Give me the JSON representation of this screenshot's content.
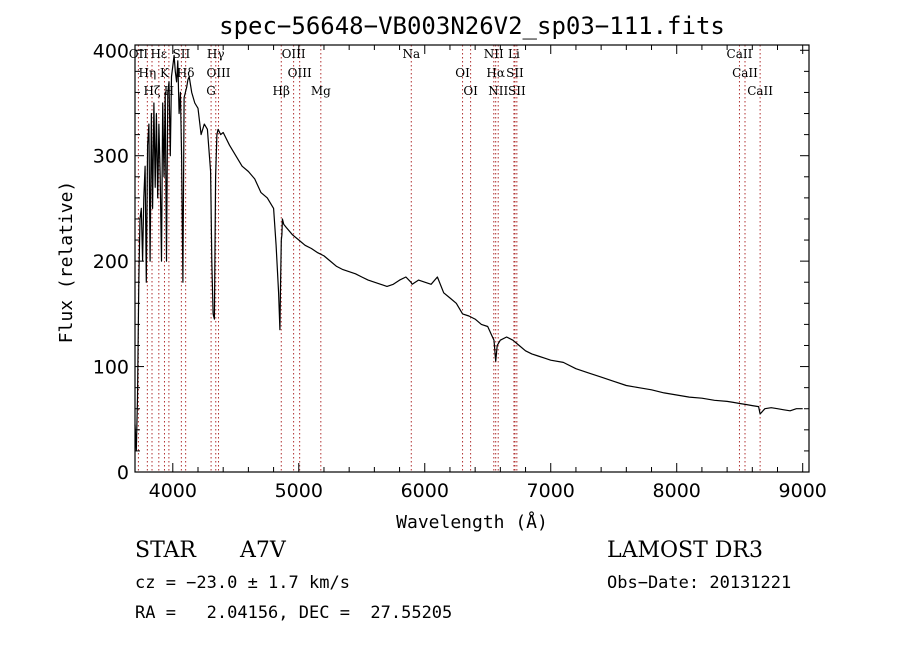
{
  "chart_data": {
    "type": "line",
    "title": "spec−56648−VB003N26V2_sp03−111.fits",
    "xlabel": "Wavelength (Å)",
    "ylabel": "Flux (relative)",
    "xlim": [
      3700,
      9050
    ],
    "ylim": [
      0,
      405
    ],
    "xticks": [
      4000,
      5000,
      6000,
      7000,
      8000,
      9000
    ],
    "yticks": [
      0,
      100,
      200,
      300,
      400
    ],
    "grid": false,
    "series": [
      {
        "name": "spectrum",
        "x": [
          3700,
          3710,
          3720,
          3730,
          3740,
          3750,
          3760,
          3770,
          3780,
          3790,
          3800,
          3810,
          3820,
          3830,
          3840,
          3850,
          3860,
          3870,
          3880,
          3890,
          3900,
          3910,
          3920,
          3930,
          3940,
          3950,
          3960,
          3970,
          3980,
          3990,
          4000,
          4010,
          4020,
          4030,
          4040,
          4050,
          4060,
          4070,
          4080,
          4090,
          4100,
          4110,
          4120,
          4130,
          4150,
          4175,
          4200,
          4225,
          4250,
          4275,
          4300,
          4310,
          4320,
          4330,
          4340,
          4350,
          4360,
          4380,
          4400,
          4450,
          4500,
          4550,
          4600,
          4650,
          4700,
          4750,
          4800,
          4820,
          4840,
          4850,
          4855,
          4861,
          4866,
          4870,
          4880,
          4900,
          4950,
          5000,
          5050,
          5100,
          5150,
          5200,
          5250,
          5300,
          5350,
          5400,
          5450,
          5500,
          5550,
          5600,
          5650,
          5700,
          5750,
          5800,
          5850,
          5890,
          5900,
          5950,
          6000,
          6050,
          6100,
          6150,
          6200,
          6250,
          6300,
          6350,
          6400,
          6450,
          6500,
          6530,
          6550,
          6563,
          6575,
          6600,
          6650,
          6700,
          6750,
          6800,
          6850,
          6900,
          6950,
          7000,
          7100,
          7200,
          7300,
          7400,
          7500,
          7600,
          7700,
          7800,
          7900,
          8000,
          8100,
          8200,
          8300,
          8400,
          8450,
          8500,
          8550,
          8600,
          8650,
          8662,
          8700,
          8750,
          8800,
          8850,
          8900,
          8950,
          9000
        ],
        "values": [
          45,
          20,
          70,
          180,
          240,
          250,
          200,
          260,
          290,
          180,
          310,
          330,
          200,
          340,
          250,
          350,
          270,
          340,
          260,
          330,
          280,
          200,
          350,
          280,
          360,
          200,
          360,
          370,
          300,
          375,
          385,
          395,
          380,
          370,
          390,
          340,
          360,
          300,
          180,
          355,
          360,
          365,
          372,
          375,
          360,
          350,
          345,
          320,
          330,
          325,
          285,
          200,
          150,
          145,
          280,
          320,
          325,
          320,
          322,
          310,
          300,
          290,
          285,
          278,
          265,
          260,
          250,
          215,
          170,
          135,
          175,
          220,
          225,
          240,
          235,
          232,
          225,
          220,
          215,
          212,
          208,
          205,
          200,
          195,
          192,
          190,
          188,
          185,
          182,
          180,
          178,
          176,
          178,
          182,
          185,
          180,
          178,
          182,
          180,
          178,
          185,
          170,
          165,
          160,
          150,
          148,
          145,
          140,
          138,
          130,
          125,
          105,
          120,
          125,
          128,
          125,
          120,
          115,
          112,
          110,
          108,
          106,
          104,
          98,
          94,
          90,
          86,
          82,
          80,
          78,
          75,
          73,
          71,
          70,
          68,
          67,
          66,
          65,
          64,
          63,
          62,
          55,
          60,
          61,
          60,
          59,
          58,
          60,
          60
        ]
      }
    ],
    "annotations": {
      "line_ids": [
        {
          "wavelength": 3727,
          "label": "OII"
        },
        {
          "wavelength": 3798,
          "label": "Hη"
        },
        {
          "wavelength": 3835,
          "label": "Hζ"
        },
        {
          "wavelength": 3889,
          "label": "Hε"
        },
        {
          "wavelength": 3934,
          "label": "K"
        },
        {
          "wavelength": 3969,
          "label": "H"
        },
        {
          "wavelength": 4068,
          "label": "SII"
        },
        {
          "wavelength": 4102,
          "label": "Hδ"
        },
        {
          "wavelength": 4304,
          "label": "G"
        },
        {
          "wavelength": 4341,
          "label": "Hγ"
        },
        {
          "wavelength": 4363,
          "label": "OIII"
        },
        {
          "wavelength": 4861,
          "label": "Hβ"
        },
        {
          "wavelength": 4959,
          "label": "OIII"
        },
        {
          "wavelength": 5007,
          "label": "OIII"
        },
        {
          "wavelength": 5175,
          "label": "Mg"
        },
        {
          "wavelength": 5893,
          "label": "Na"
        },
        {
          "wavelength": 6300,
          "label": "OI"
        },
        {
          "wavelength": 6364,
          "label": "OI"
        },
        {
          "wavelength": 6548,
          "label": "NII"
        },
        {
          "wavelength": 6563,
          "label": "Hα"
        },
        {
          "wavelength": 6583,
          "label": "NII"
        },
        {
          "wavelength": 6708,
          "label": "Li"
        },
        {
          "wavelength": 6716,
          "label": "SII"
        },
        {
          "wavelength": 6731,
          "label": "SII"
        },
        {
          "wavelength": 8498,
          "label": "CaII"
        },
        {
          "wavelength": 8542,
          "label": "CaII"
        },
        {
          "wavelength": 8662,
          "label": "CaII"
        }
      ]
    }
  },
  "info": {
    "class": "STAR",
    "subclass": "A7V",
    "survey": "LAMOST DR3",
    "redshift": "cz = −23.0 ± 1.7 km/s",
    "obs_date": "Obs−Date: 20131221",
    "coords": "RA =   2.04156, DEC =  27.55205"
  }
}
